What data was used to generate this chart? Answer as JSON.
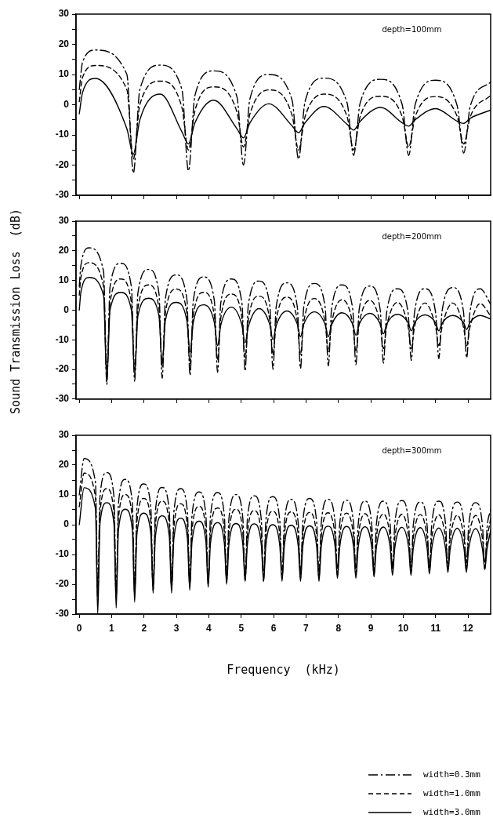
{
  "chart_data": [
    {
      "type": "line",
      "annotations": [
        "depth=100mm"
      ],
      "xlim": [
        -0.1,
        12.7
      ],
      "ylim": [
        -30,
        30
      ],
      "tick_labels": "y",
      "xticks": [
        0,
        1,
        2,
        3,
        4,
        5,
        6,
        7,
        8,
        9,
        10,
        11,
        12
      ],
      "yticks": [
        -30,
        {
          "value": -25,
          "label": null
        },
        -20,
        {
          "value": -15,
          "label": null
        },
        -10,
        {
          "value": -5,
          "label": null
        },
        0,
        {
          "value": 5,
          "label": null
        },
        10,
        {
          "value": 15,
          "label": null
        },
        20,
        {
          "value": 25,
          "label": null
        },
        30
      ],
      "x": [
        0,
        0.1,
        0.5,
        1.47,
        1.67,
        1.87,
        2.5,
        3.17,
        3.37,
        3.57,
        4.15,
        4.87,
        5.07,
        5.27,
        5.85,
        6.57,
        6.77,
        6.97,
        7.55,
        8.27,
        8.47,
        8.67,
        9.3,
        9.97,
        10.17,
        10.37,
        11.0,
        11.67,
        11.87,
        12.07,
        12.7
      ],
      "series": [
        {
          "color": "#000000",
          "line_style": "dashdot",
          "values": [
            5,
            14,
            18.1,
            10,
            -22.6,
            5,
            13.1,
            5,
            -21.9,
            3,
            11.2,
            2.5,
            -20,
            2,
            10,
            1.5,
            -18,
            1,
            8.8,
            0.5,
            -16.8,
            0.5,
            8.4,
            0,
            -16.8,
            0,
            8.1,
            -0.5,
            -16,
            -0.5,
            7.5
          ]
        },
        {
          "color": "#000000",
          "line_style": "dashed",
          "values": [
            1,
            9,
            13,
            5,
            -18,
            0,
            7.8,
            -1,
            -15,
            -2,
            5.9,
            -2.5,
            -14,
            -3,
            4.9,
            -3.5,
            -15,
            -4,
            3.5,
            -4,
            -15,
            -4,
            2.8,
            -4,
            -14,
            -4,
            2.7,
            -4,
            -13,
            -4,
            3.1
          ]
        },
        {
          "color": "#000000",
          "line_style": "solid",
          "values": [
            -3,
            4,
            8.7,
            -8,
            -16.4,
            -5,
            3.5,
            -9,
            -13,
            -6,
            1.5,
            -8,
            -11,
            -6,
            0.3,
            -7,
            -9.3,
            -6,
            -0.6,
            -6.5,
            -8.4,
            -5.5,
            -0.9,
            -6,
            -7.1,
            -5,
            -1.3,
            -5.5,
            -6.2,
            -4.5,
            -1.8
          ]
        }
      ]
    },
    {
      "type": "line",
      "annotations": [
        "depth=200mm"
      ],
      "ylabel": "Sound Transmission Loss  (dB)",
      "xlim": [
        -0.1,
        12.7
      ],
      "ylim": [
        -30,
        30
      ],
      "tick_labels": "y",
      "xticks": [
        0,
        1,
        2,
        3,
        4,
        5,
        6,
        7,
        8,
        9,
        10,
        11,
        12
      ],
      "yticks": [
        -30,
        {
          "value": -25,
          "label": null
        },
        -20,
        {
          "value": -15,
          "label": null
        },
        -10,
        {
          "value": -5,
          "label": null
        },
        0,
        {
          "value": 5,
          "label": null
        },
        10,
        {
          "value": 15,
          "label": null
        },
        20,
        {
          "value": 25,
          "label": null
        },
        30
      ],
      "x": [
        0,
        0.05,
        0.3,
        0.75,
        0.85,
        0.95,
        1.28,
        1.61,
        1.71,
        1.81,
        2.14,
        2.46,
        2.56,
        2.66,
        2.99,
        3.32,
        3.42,
        3.52,
        3.84,
        4.17,
        4.27,
        4.37,
        4.7,
        5.02,
        5.12,
        5.22,
        5.55,
        5.88,
        5.98,
        6.08,
        6.41,
        6.73,
        6.83,
        6.93,
        7.26,
        7.59,
        7.69,
        7.79,
        8.11,
        8.44,
        8.54,
        8.64,
        8.97,
        9.29,
        9.39,
        9.49,
        9.82,
        10.15,
        10.25,
        10.35,
        10.67,
        11.0,
        11.1,
        11.2,
        11.53,
        11.86,
        11.96,
        12.06,
        12.38,
        12.7
      ],
      "series": [
        {
          "color": "#000000",
          "line_style": "dashdot",
          "values": [
            8,
            15,
            21.0,
            13,
            -25,
            7.8,
            15.8,
            7.8,
            -24,
            5.7,
            13.7,
            5.7,
            -23,
            3.9,
            11.9,
            3.9,
            -22,
            3.2,
            11.2,
            3.2,
            -21,
            2.5,
            10.5,
            2.5,
            -20.5,
            1.8,
            9.8,
            1.8,
            -20,
            1.2,
            9.2,
            1.2,
            -19.7,
            1.0,
            9.0,
            1.0,
            -18.8,
            0.5,
            8.5,
            0.5,
            -18.4,
            0.1,
            8.1,
            0.1,
            -17.9,
            -0.8,
            7.2,
            -0.8,
            -17,
            -0.8,
            7.2,
            -0.8,
            -16.4,
            -0.4,
            7.6,
            -0.4,
            -16.1,
            -0.8,
            7.2,
            2
          ]
        },
        {
          "color": "#000000",
          "line_style": "dashed",
          "values": [
            5,
            11,
            16.0,
            8,
            -20,
            2.5,
            10.5,
            2.5,
            -20,
            0.5,
            8.5,
            0.5,
            -19,
            -0.9,
            7.1,
            -0.9,
            -18,
            -2,
            6.0,
            -2,
            -17,
            -2.6,
            5.4,
            -2.6,
            -16,
            -3.3,
            4.7,
            -3.3,
            -15,
            -3.6,
            4.4,
            -3.6,
            -15,
            -4.1,
            3.9,
            -4.1,
            -14,
            -4.5,
            3.5,
            -4.5,
            -14,
            -4.7,
            3.3,
            -4.7,
            -13,
            -5.4,
            2.6,
            -5.4,
            -13,
            -5.6,
            2.4,
            -5.6,
            -12,
            -5.6,
            2.4,
            -5.6,
            -12,
            -5.8,
            2.2,
            -2
          ]
        },
        {
          "color": "#000000",
          "line_style": "solid",
          "values": [
            0,
            6,
            11.0,
            5,
            -24,
            0,
            6.0,
            0,
            -22,
            -2,
            4.0,
            -2,
            -18,
            -3.4,
            2.6,
            -3.4,
            -14,
            -4.2,
            1.8,
            -4.2,
            -12,
            -5,
            1.0,
            -5,
            -11,
            -5.5,
            0.5,
            -4.8,
            -10,
            -5.2,
            -0.3,
            -4.7,
            -9,
            -4.8,
            -0.6,
            -4.8,
            -9,
            -5.0,
            -0.9,
            -4.7,
            -8.5,
            -4.8,
            -1.1,
            -4.6,
            -8,
            -4.7,
            -1.4,
            -4.2,
            -7,
            -4.3,
            -1.6,
            -4.3,
            -7,
            -4.4,
            -1.8,
            -4.2,
            -6.5,
            -4.2,
            -1.8,
            -3
          ]
        }
      ]
    },
    {
      "type": "line",
      "annotations": [
        "depth=300mm"
      ],
      "xlabel": "Frequency  (kHz)",
      "xlim": [
        -0.1,
        12.7
      ],
      "ylim": [
        -30,
        30
      ],
      "legend": "bottom",
      "xticks": [
        0,
        1,
        2,
        3,
        4,
        5,
        6,
        7,
        8,
        9,
        10,
        11,
        12
      ],
      "yticks": [
        -30,
        {
          "value": -25,
          "label": null
        },
        -20,
        {
          "value": -15,
          "label": null
        },
        -10,
        {
          "value": -5,
          "label": null
        },
        0,
        {
          "value": 5,
          "label": null
        },
        10,
        {
          "value": 15,
          "label": null
        },
        20,
        {
          "value": 25,
          "label": null
        },
        30
      ],
      "x": [
        0,
        0.15,
        0.5,
        0.57,
        0.64,
        0.85,
        1.07,
        1.14,
        1.21,
        1.42,
        1.64,
        1.71,
        1.78,
        1.99,
        2.21,
        2.28,
        2.35,
        2.56,
        2.78,
        2.85,
        2.92,
        3.13,
        3.34,
        3.41,
        3.48,
        3.7,
        3.91,
        3.98,
        4.05,
        4.27,
        4.48,
        4.55,
        4.62,
        4.84,
        5.05,
        5.12,
        5.19,
        5.4,
        5.62,
        5.69,
        5.76,
        5.97,
        6.19,
        6.26,
        6.33,
        6.54,
        6.76,
        6.83,
        6.9,
        7.11,
        7.33,
        7.4,
        7.47,
        7.68,
        7.9,
        7.97,
        8.04,
        8.25,
        8.47,
        8.54,
        8.61,
        8.82,
        9.03,
        9.1,
        9.17,
        9.39,
        9.6,
        9.67,
        9.74,
        9.96,
        10.17,
        10.24,
        10.31,
        10.53,
        10.74,
        10.81,
        10.88,
        11.1,
        11.31,
        11.38,
        11.45,
        11.67,
        11.88,
        11.95,
        12.02,
        12.24,
        12.45,
        12.52,
        12.59,
        12.7
      ],
      "series": [
        {
          "name": "width=0.3mm",
          "color": "#000000",
          "line_style": "dashdot",
          "values": [
            10,
            22.2,
            14.2,
            -22,
            9.5,
            17.5,
            9.5,
            -22,
            7.2,
            15.2,
            7.2,
            -22,
            5.7,
            13.7,
            5.7,
            -21,
            4.5,
            12.5,
            4.5,
            -21,
            4.1,
            12.1,
            4.1,
            -20,
            3.0,
            11.0,
            3.0,
            -20,
            2.8,
            10.8,
            2.8,
            -19,
            2.1,
            10.1,
            2.1,
            -19,
            1.7,
            9.7,
            1.7,
            -19,
            1.4,
            9.4,
            1.4,
            -18,
            0.5,
            8.5,
            0.5,
            -18,
            0.8,
            8.8,
            0.8,
            -18,
            0.5,
            8.5,
            0.5,
            -17,
            0.2,
            8.2,
            0.2,
            -17,
            -0.1,
            7.9,
            -0.1,
            -17,
            -0.1,
            7.9,
            -0.1,
            -16,
            0.1,
            8.1,
            0.1,
            -16,
            -0.4,
            7.6,
            -0.4,
            -16,
            -0.1,
            7.9,
            -0.1,
            -15,
            -0.4,
            7.6,
            -0.4,
            -15,
            -0.6,
            7.4,
            -0.6,
            -15,
            -1,
            5
          ]
        },
        {
          "name": "width=1.0mm",
          "color": "#000000",
          "line_style": "dashed",
          "values": [
            6,
            17.3,
            9.3,
            -24,
            4.1,
            12.1,
            4.1,
            -24,
            2.1,
            10.1,
            2.1,
            -23,
            0.8,
            8.8,
            0.8,
            -22,
            -0.1,
            7.9,
            -0.1,
            -21,
            -1.0,
            7.0,
            -1.0,
            -20,
            -1.9,
            6.1,
            -1.9,
            -19,
            -2.4,
            5.6,
            -2.4,
            -18,
            -2.8,
            5.2,
            -2.8,
            -18,
            -3.3,
            4.7,
            -3.3,
            -17,
            -3.5,
            4.5,
            -3.5,
            -17,
            -3.7,
            4.3,
            -3.7,
            -16,
            -3.9,
            4.1,
            -3.9,
            -16,
            -4.0,
            4.0,
            -4.0,
            -15,
            -4.1,
            3.9,
            -4.1,
            -15,
            -4.3,
            3.7,
            -4.3,
            -15,
            -4.4,
            3.6,
            -4.4,
            -14,
            -4.5,
            3.5,
            -4.5,
            -14,
            -4.6,
            3.4,
            -4.6,
            -14,
            -4.7,
            3.3,
            -4.7,
            -13,
            -4.8,
            3.2,
            -4.8,
            -13,
            -4.9,
            3.1,
            -4.9,
            -13,
            -5,
            2
          ]
        },
        {
          "name": "width=3.0mm",
          "color": "#000000",
          "line_style": "solid",
          "values": [
            0,
            12.4,
            5.4,
            -30,
            0.4,
            7.4,
            0.4,
            -28,
            -1.8,
            5.2,
            -1.8,
            -26,
            -3.1,
            3.9,
            -3.1,
            -23,
            -4.0,
            3.0,
            -4.0,
            -23,
            -4.8,
            2.2,
            -4.8,
            -22,
            -5.8,
            1.2,
            -5.8,
            -21,
            -6.3,
            0.7,
            -6.3,
            -20,
            -6.6,
            0.4,
            -6.6,
            -19,
            -6.7,
            0.3,
            -6.7,
            -19,
            -7.0,
            0,
            -7.0,
            -19,
            -7.2,
            -0.2,
            -7.2,
            -19,
            -7.4,
            -0.4,
            -7.4,
            -19,
            -7.5,
            -0.5,
            -7.5,
            -18,
            -7.6,
            -0.6,
            -7.6,
            -18,
            -7.7,
            -0.7,
            -7.7,
            -17.5,
            -7.8,
            -0.8,
            -7.8,
            -17,
            -7.9,
            -0.9,
            -7.9,
            -17,
            -8.0,
            -1.0,
            -8.0,
            -16.5,
            -8.1,
            -1.1,
            -8.1,
            -16,
            -8.2,
            -1.2,
            -8.2,
            -16,
            -8.3,
            -1.3,
            -8.3,
            -15,
            -8,
            -2
          ]
        }
      ]
    }
  ]
}
